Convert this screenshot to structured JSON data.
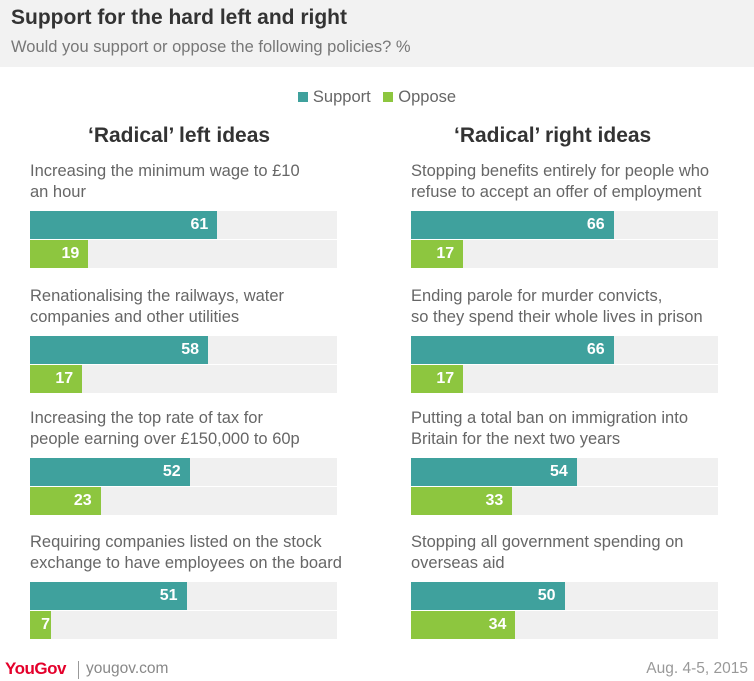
{
  "header": {
    "title": "Support for the hard left and right",
    "subtitle": "Would you support or oppose the following policies? %"
  },
  "colors": {
    "support": "#3fa19d",
    "oppose": "#8dc63f",
    "track": "#f0f0f0",
    "brand": "#e4002b"
  },
  "footer": {
    "brand": "YouGov",
    "url": "yougov.com",
    "date": "Aug. 4-5, 2015"
  },
  "chart_data": {
    "type": "bar",
    "orientation": "horizontal",
    "xlim": [
      0,
      100
    ],
    "grid": false,
    "legend_position": "top-center",
    "legend": [
      "Support",
      "Oppose"
    ],
    "panels": [
      {
        "title": "‘Radical’ left ideas",
        "categories": [
          "Increasing the minimum wage to £10\nan hour",
          "Renationalising the railways, water\ncompanies and other utilities",
          "Increasing the top rate of tax for\npeople earning over £150,000 to 60p",
          "Requiring companies listed on the stock\nexchange to have employees on the board"
        ],
        "series": [
          {
            "name": "Support",
            "values": [
              61,
              58,
              52,
              51
            ]
          },
          {
            "name": "Oppose",
            "values": [
              19,
              17,
              23,
              7
            ]
          }
        ]
      },
      {
        "title": "‘Radical’ right ideas",
        "categories": [
          "Stopping benefits entirely for people who\nrefuse to accept an offer of employment",
          "Ending parole for murder convicts,\nso they spend their whole lives in prison",
          "Putting a total ban on immigration into\nBritain for the next two years",
          "Stopping all government spending on\noverseas aid"
        ],
        "series": [
          {
            "name": "Support",
            "values": [
              66,
              66,
              54,
              50
            ]
          },
          {
            "name": "Oppose",
            "values": [
              17,
              17,
              33,
              34
            ]
          }
        ]
      }
    ]
  }
}
